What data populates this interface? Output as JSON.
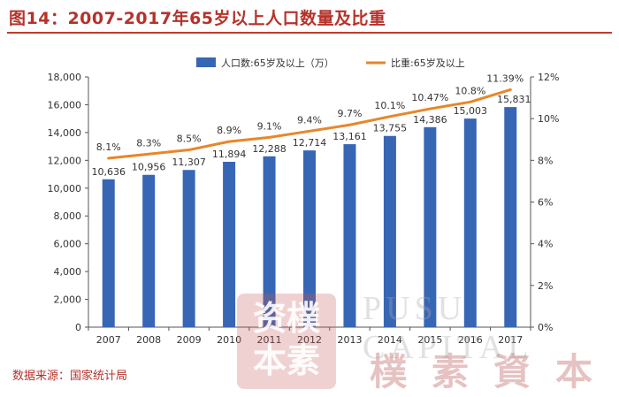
{
  "title": "图14：2007-2017年65岁以上人口数量及比重",
  "source": "数据来源：国家统计局",
  "watermark": {
    "seal": "资樸本素",
    "english": "PUSU CAPITAL",
    "chinese": "樸素資本"
  },
  "colors": {
    "bar": "#3766b5",
    "line": "#e8862a",
    "title": "#b5322b",
    "axis": "#555555"
  },
  "chart_data": {
    "type": "bar",
    "categories": [
      "2007",
      "2008",
      "2009",
      "2010",
      "2011",
      "2012",
      "2013",
      "2014",
      "2015",
      "2016",
      "2017"
    ],
    "series": [
      {
        "name": "人口数:65岁及以上（万）",
        "type": "bar",
        "axis": "left",
        "values": [
          10636,
          10956,
          11307,
          11894,
          12288,
          12714,
          13161,
          13755,
          14386,
          15003,
          15831
        ],
        "labels": [
          "10,636",
          "10,956",
          "11,307",
          "11,894",
          "12,288",
          "12,714",
          "13,161",
          "13,755",
          "14,386",
          "15,003",
          "15,831"
        ]
      },
      {
        "name": "比重:65岁及以上",
        "type": "line",
        "axis": "right",
        "values": [
          8.1,
          8.3,
          8.5,
          8.9,
          9.1,
          9.4,
          9.7,
          10.1,
          10.47,
          10.8,
          11.39
        ],
        "labels": [
          "8.1%",
          "8.3%",
          "8.5%",
          "8.9%",
          "9.1%",
          "9.4%",
          "9.7%",
          "10.1%",
          "10.47%",
          "10.8%",
          "11.39%"
        ]
      }
    ],
    "y_left": {
      "range": [
        0,
        18000
      ],
      "ticks": [
        0,
        2000,
        4000,
        6000,
        8000,
        10000,
        12000,
        14000,
        16000,
        18000
      ],
      "tick_labels": [
        "0",
        "2,000",
        "4,000",
        "6,000",
        "8,000",
        "10,000",
        "12,000",
        "14,000",
        "16,000",
        "18,000"
      ]
    },
    "y_right": {
      "range": [
        0,
        12
      ],
      "ticks": [
        0,
        2,
        4,
        6,
        8,
        10,
        12
      ],
      "tick_labels": [
        "0%",
        "2%",
        "4%",
        "6%",
        "8%",
        "10%",
        "12%"
      ]
    },
    "legend_position": "top-center",
    "grid": false
  }
}
